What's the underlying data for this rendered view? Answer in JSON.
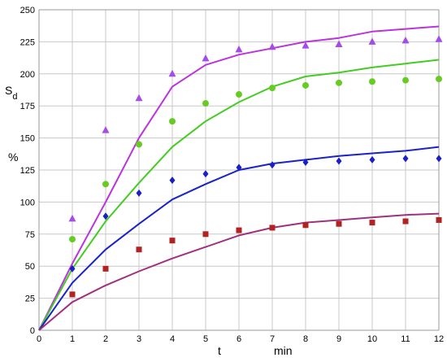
{
  "chart_data": {
    "type": "line",
    "xlabel": "t",
    "xunit": "min",
    "ylabel_main": "S",
    "ylabel_sub": "d",
    "yunit": "%",
    "xlim": [
      0,
      12
    ],
    "ylim": [
      0,
      250
    ],
    "xticks": [
      "0",
      "1",
      "2",
      "3",
      "4",
      "5",
      "6",
      "7",
      "8",
      "9",
      "10",
      "11",
      "12"
    ],
    "yticks": [
      "0",
      "25",
      "50",
      "75",
      "100",
      "125",
      "150",
      "175",
      "200",
      "225",
      "250"
    ],
    "grid": true,
    "legend": "none",
    "lines": [
      {
        "color": "#bb33dd",
        "x": [
          0,
          1,
          2,
          3,
          4,
          5,
          6,
          7,
          8,
          9,
          10,
          11,
          12
        ],
        "y": [
          0,
          52,
          100,
          150,
          190,
          207,
          215,
          220,
          225,
          228,
          233,
          235,
          237
        ]
      },
      {
        "color": "#44cc22",
        "x": [
          0,
          1,
          2,
          3,
          4,
          5,
          6,
          7,
          8,
          9,
          10,
          11,
          12
        ],
        "y": [
          0,
          48,
          85,
          115,
          143,
          163,
          178,
          190,
          198,
          201,
          205,
          208,
          211
        ]
      },
      {
        "color": "#1a23c8",
        "x": [
          0,
          1,
          2,
          3,
          4,
          5,
          6,
          7,
          8,
          9,
          10,
          11,
          12
        ],
        "y": [
          0,
          37,
          63,
          83,
          102,
          114,
          125,
          130,
          133,
          136,
          138,
          140,
          143
        ]
      },
      {
        "color": "#a03080",
        "x": [
          0,
          1,
          2,
          3,
          4,
          5,
          6,
          7,
          8,
          9,
          10,
          11,
          12
        ],
        "y": [
          0,
          22,
          35,
          46,
          56,
          65,
          74,
          80,
          84,
          86,
          88,
          90,
          91
        ]
      }
    ],
    "markers": [
      {
        "shape": "triangle",
        "color": "#a64ce6",
        "x": [
          1,
          2,
          3,
          4,
          5,
          6,
          7,
          8,
          9,
          10,
          11,
          12
        ],
        "y": [
          87,
          156,
          181,
          200,
          212,
          219,
          221,
          222,
          223,
          225,
          226,
          227
        ]
      },
      {
        "shape": "circle",
        "color": "#66cc22",
        "x": [
          1,
          2,
          3,
          4,
          5,
          6,
          7,
          8,
          9,
          10,
          11,
          12
        ],
        "y": [
          71,
          114,
          145,
          163,
          177,
          184,
          189,
          191,
          193,
          194,
          195,
          196
        ]
      },
      {
        "shape": "diamond",
        "color": "#1a1fc8",
        "x": [
          1,
          2,
          3,
          4,
          5,
          6,
          7,
          8,
          9,
          10,
          11,
          12
        ],
        "y": [
          48,
          89,
          107,
          117,
          122,
          127,
          129,
          131,
          132,
          133,
          134,
          134
        ]
      },
      {
        "shape": "square",
        "color": "#b22222",
        "x": [
          1,
          2,
          3,
          4,
          5,
          6,
          7,
          8,
          9,
          10,
          11,
          12
        ],
        "y": [
          28,
          48,
          63,
          70,
          75,
          78,
          80,
          82,
          83,
          84,
          85,
          86
        ]
      }
    ]
  }
}
